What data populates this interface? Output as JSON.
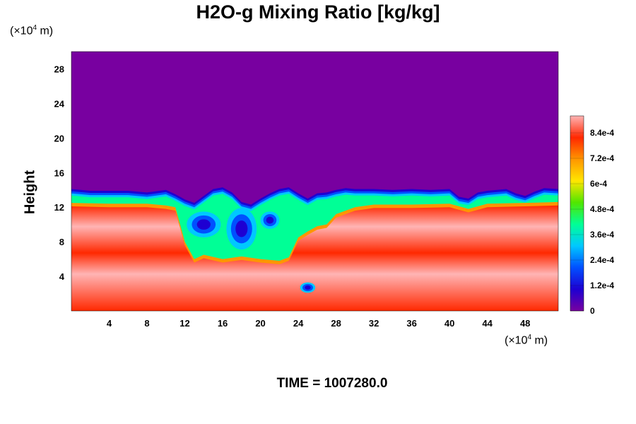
{
  "chart_data": {
    "type": "heatmap",
    "title": "H2O-g Mixing Ratio [kg/kg]",
    "ylabel": "Height",
    "xlabel": "",
    "y_unit": {
      "prefix": "(×10",
      "exp": "4",
      "suffix": " m)"
    },
    "x_unit": {
      "prefix": "(×10",
      "exp": "4",
      "suffix": " m)"
    },
    "xlim": [
      0,
      51.5
    ],
    "ylim": [
      0,
      30
    ],
    "x_ticks": [
      4,
      8,
      12,
      16,
      20,
      24,
      28,
      32,
      36,
      40,
      44,
      48
    ],
    "y_ticks": [
      4,
      8,
      12,
      16,
      20,
      24,
      28
    ],
    "colorbar": {
      "range": [
        0,
        0.00092
      ],
      "tick_values": [
        0,
        0.00012,
        0.00024,
        0.00036,
        0.00048,
        0.0006,
        0.00072,
        0.00084
      ],
      "tick_labels": [
        "0",
        "1.2e-4",
        "2.4e-4",
        "3.6e-4",
        "4.8e-4",
        "6e-4",
        "7.2e-4",
        "8.4e-4"
      ],
      "colormap": [
        "#7800a0",
        "#1e00d2",
        "#0050ff",
        "#00c8ff",
        "#00ff96",
        "#50e600",
        "#ffe600",
        "#ff9600",
        "#ff2800",
        "#ffb4b4"
      ]
    },
    "boundary_layer_top": [
      [
        0,
        14.1
      ],
      [
        2,
        13.9
      ],
      [
        4,
        13.9
      ],
      [
        6,
        13.9
      ],
      [
        8,
        13.7
      ],
      [
        10,
        14.0
      ],
      [
        11,
        13.5
      ],
      [
        12,
        12.9
      ],
      [
        13,
        12.5
      ],
      [
        14,
        13.3
      ],
      [
        15,
        14.1
      ],
      [
        16,
        14.3
      ],
      [
        17,
        13.7
      ],
      [
        18,
        12.6
      ],
      [
        19,
        12.3
      ],
      [
        20,
        13.0
      ],
      [
        21,
        13.6
      ],
      [
        22,
        14.1
      ],
      [
        23,
        14.3
      ],
      [
        24,
        13.6
      ],
      [
        25,
        13.0
      ],
      [
        26,
        13.6
      ],
      [
        27,
        13.7
      ],
      [
        28,
        14.0
      ],
      [
        29,
        14.2
      ],
      [
        30,
        14.1
      ],
      [
        32,
        14.1
      ],
      [
        34,
        14.0
      ],
      [
        36,
        14.1
      ],
      [
        38,
        14.0
      ],
      [
        40,
        14.1
      ],
      [
        41,
        13.2
      ],
      [
        42,
        13.0
      ],
      [
        43,
        13.7
      ],
      [
        44,
        13.9
      ],
      [
        45,
        14.0
      ],
      [
        46,
        14.1
      ],
      [
        47,
        13.6
      ],
      [
        48,
        13.3
      ],
      [
        49,
        13.8
      ],
      [
        50,
        14.2
      ],
      [
        51.5,
        14.1
      ]
    ],
    "moist_layer_top": [
      [
        0,
        12.5
      ],
      [
        4,
        12.4
      ],
      [
        8,
        12.4
      ],
      [
        10,
        12.2
      ],
      [
        11,
        12.0
      ],
      [
        12,
        8.0
      ],
      [
        13,
        6.0
      ],
      [
        14,
        6.5
      ],
      [
        16,
        6.0
      ],
      [
        18,
        6.3
      ],
      [
        20,
        6.0
      ],
      [
        22,
        5.8
      ],
      [
        23,
        6.2
      ],
      [
        24,
        8.5
      ],
      [
        25,
        9.2
      ],
      [
        26,
        9.8
      ],
      [
        27,
        10.0
      ],
      [
        28,
        11.2
      ],
      [
        30,
        12.0
      ],
      [
        32,
        12.3
      ],
      [
        36,
        12.3
      ],
      [
        40,
        12.4
      ],
      [
        42,
        11.8
      ],
      [
        44,
        12.4
      ],
      [
        48,
        12.5
      ],
      [
        51.5,
        12.6
      ]
    ],
    "dry_pockets": [
      {
        "cx": 14.0,
        "cy": 10.0,
        "rx": 1.8,
        "ry": 1.5
      },
      {
        "cx": 18.0,
        "cy": 9.5,
        "rx": 1.6,
        "ry": 2.4
      },
      {
        "cx": 21.0,
        "cy": 10.5,
        "rx": 1.0,
        "ry": 1.0
      },
      {
        "cx": 25.0,
        "cy": 2.7,
        "rx": 0.8,
        "ry": 0.6
      }
    ],
    "time_label": "TIME = 1007280.0"
  }
}
